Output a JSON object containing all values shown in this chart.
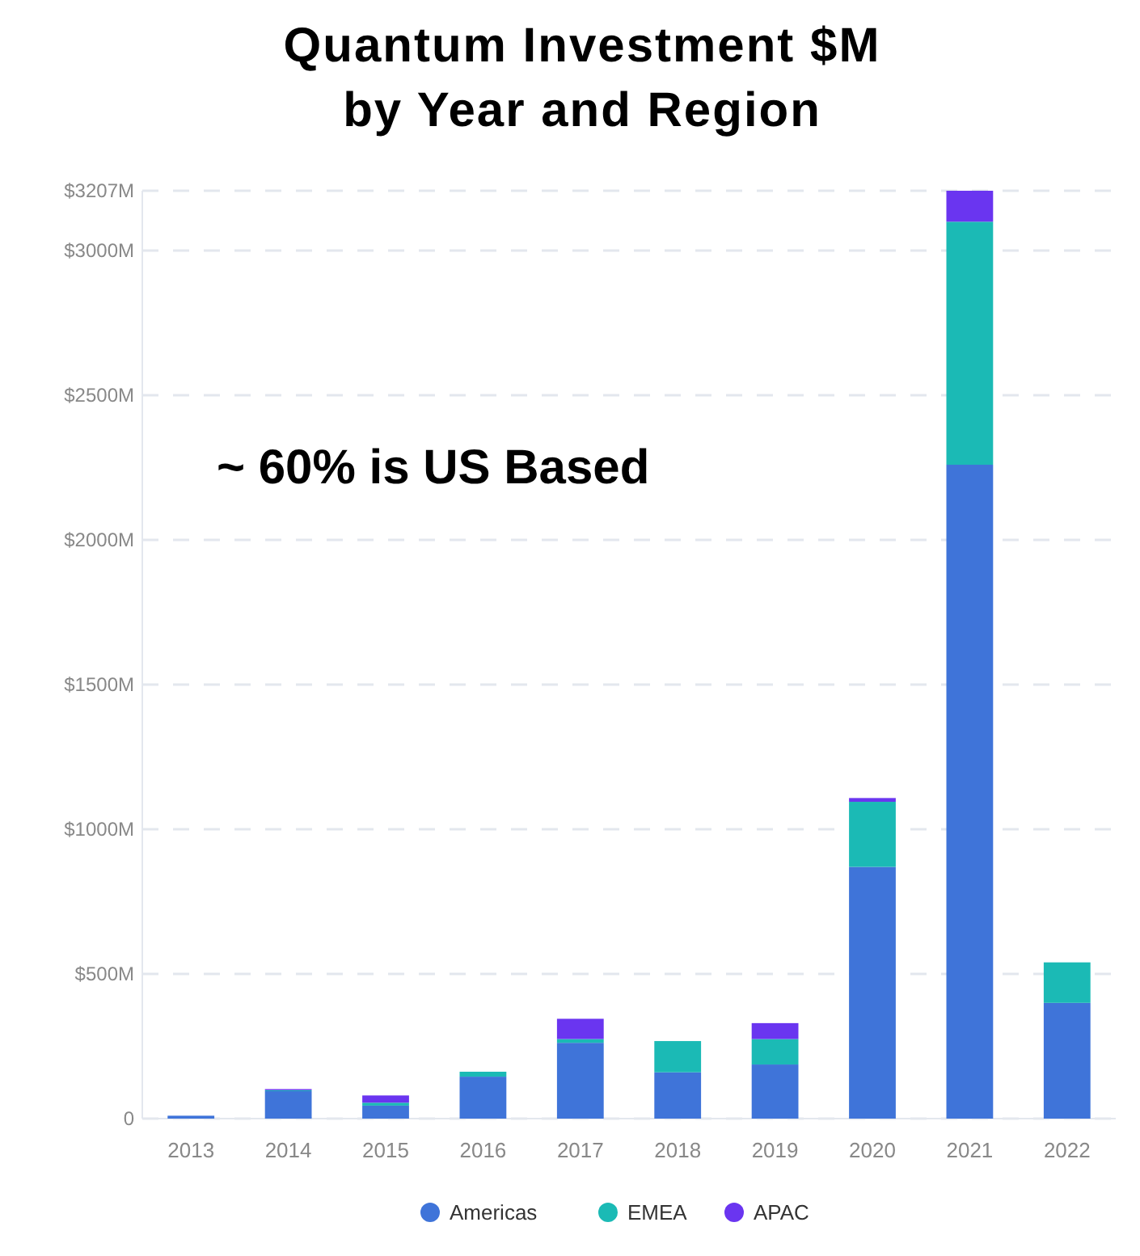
{
  "chart_data": {
    "type": "bar",
    "title": "Quantum Investment $M\nby Year and Region",
    "categories": [
      "2013",
      "2014",
      "2015",
      "2016",
      "2017",
      "2018",
      "2019",
      "2020",
      "2021",
      "2022"
    ],
    "series": [
      {
        "name": "Americas",
        "color": "#3f74d9",
        "values": [
          10,
          95,
          45,
          145,
          262,
          160,
          187,
          870,
          2260,
          400
        ]
      },
      {
        "name": "EMEA",
        "color": "#1bbab5",
        "values": [
          0,
          3,
          10,
          17,
          13,
          108,
          88,
          225,
          840,
          140
        ]
      },
      {
        "name": "APAC",
        "color": "#6a35f0",
        "values": [
          0,
          4,
          25,
          0,
          70,
          0,
          55,
          13,
          107,
          0
        ]
      }
    ],
    "stacked": true,
    "ylim": [
      0,
      3207
    ],
    "yticks": [
      {
        "value": 0,
        "label": "0"
      },
      {
        "value": 500,
        "label": "$500M"
      },
      {
        "value": 1000,
        "label": "$1000M"
      },
      {
        "value": 1500,
        "label": "$1500M"
      },
      {
        "value": 2000,
        "label": "$2000M"
      },
      {
        "value": 2500,
        "label": "$2500M"
      },
      {
        "value": 3000,
        "label": "$3000M"
      },
      {
        "value": 3207,
        "label": "$3207M"
      }
    ],
    "grid": "y",
    "legend": "bottom",
    "annotations": [
      "~ 60% is US Based"
    ]
  }
}
